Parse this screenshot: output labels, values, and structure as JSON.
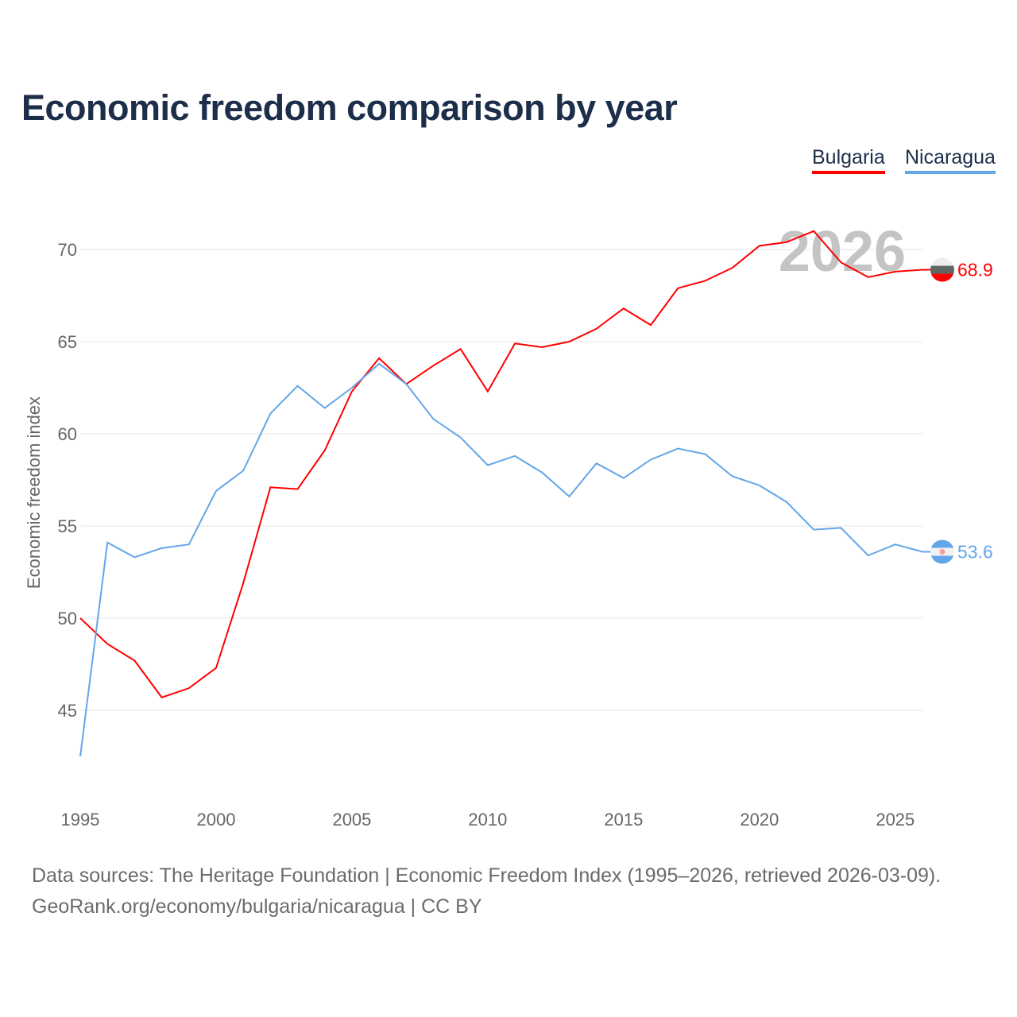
{
  "title": "Economic freedom comparison by year",
  "footer": {
    "line1": "Data sources: The Heritage Foundation | Economic Freedom Index (1995–2026, retrieved 2026-03-09).",
    "line2": "GeoRank.org/economy/bulgaria/nicaragua | CC BY"
  },
  "chart_data": {
    "type": "line",
    "title": "Economic freedom comparison by year",
    "xlabel": "",
    "ylabel": "Economic freedom index",
    "watermark_year": "2026",
    "xlim": [
      1995,
      2026
    ],
    "ylim": [
      40.7,
      72.7
    ],
    "xticks": [
      1995,
      2000,
      2005,
      2010,
      2015,
      2020,
      2025
    ],
    "yticks": [
      45,
      50,
      55,
      60,
      65,
      70
    ],
    "grid": true,
    "legend_position": "top-right",
    "x": [
      1995,
      1996,
      1997,
      1998,
      1999,
      2000,
      2001,
      2002,
      2003,
      2004,
      2005,
      2006,
      2007,
      2008,
      2009,
      2010,
      2011,
      2012,
      2013,
      2014,
      2015,
      2016,
      2017,
      2018,
      2019,
      2020,
      2021,
      2022,
      2023,
      2024,
      2025,
      2026
    ],
    "series": [
      {
        "name": "Bulgaria",
        "color": "#ff0000",
        "end_label": "68.9",
        "values": [
          50.0,
          48.6,
          47.7,
          45.7,
          46.2,
          47.3,
          51.9,
          57.1,
          57.0,
          59.1,
          62.3,
          64.1,
          62.7,
          63.7,
          64.6,
          62.3,
          64.9,
          64.7,
          65.0,
          65.7,
          66.8,
          65.9,
          67.9,
          68.3,
          69.0,
          70.2,
          70.4,
          71.0,
          69.3,
          68.5,
          68.8,
          68.9
        ]
      },
      {
        "name": "Nicaragua",
        "color": "#63a6e8",
        "end_label": "53.6",
        "values": [
          42.5,
          54.1,
          53.3,
          53.8,
          54.0,
          56.9,
          58.0,
          61.1,
          62.6,
          61.4,
          62.5,
          63.8,
          62.7,
          60.8,
          59.8,
          58.3,
          58.8,
          57.9,
          56.6,
          58.4,
          57.6,
          58.6,
          59.2,
          58.9,
          57.7,
          57.2,
          56.3,
          54.8,
          54.9,
          53.4,
          54.0,
          53.6
        ]
      }
    ]
  }
}
